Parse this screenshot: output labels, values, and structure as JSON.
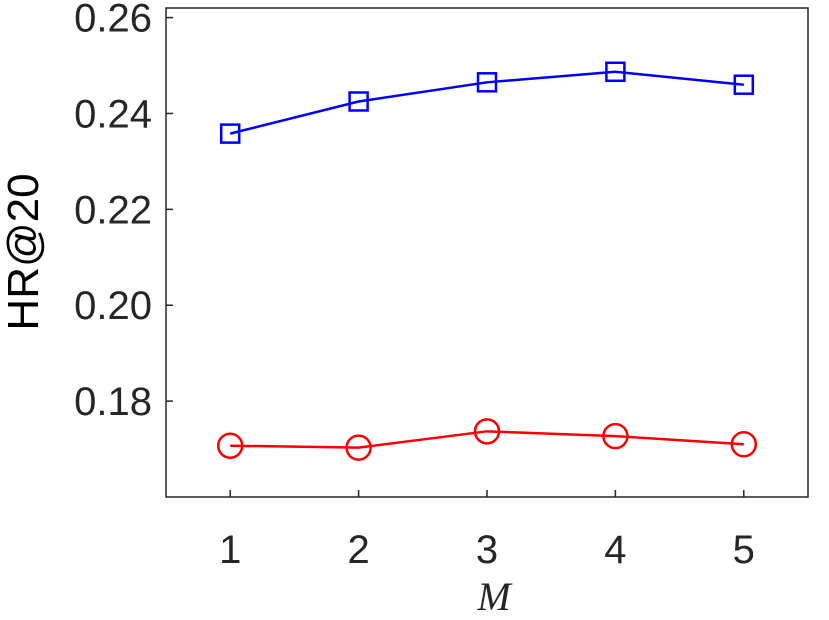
{
  "chart_data": {
    "type": "line",
    "xlabel": "M",
    "ylabel": "HR@20",
    "x": [
      1,
      2,
      3,
      4,
      5
    ],
    "xlim": [
      0.5,
      5.5
    ],
    "ylim": [
      0.16,
      0.262
    ],
    "xticks": [
      1,
      2,
      3,
      4,
      5
    ],
    "xtick_labels": [
      "1",
      "2",
      "3",
      "4",
      "5"
    ],
    "yticks": [
      0.18,
      0.2,
      0.22,
      0.24,
      0.26
    ],
    "ytick_labels": [
      "0.18",
      "0.20",
      "0.22",
      "0.24",
      "0.26"
    ],
    "grid": false,
    "series": [
      {
        "color": "#0000ff",
        "marker": "square",
        "values": [
          0.2358,
          0.2425,
          0.2465,
          0.2487,
          0.246
        ]
      },
      {
        "color": "#ff0000",
        "marker": "circle",
        "values": [
          0.1707,
          0.1703,
          0.1737,
          0.1727,
          0.171
        ]
      }
    ]
  }
}
